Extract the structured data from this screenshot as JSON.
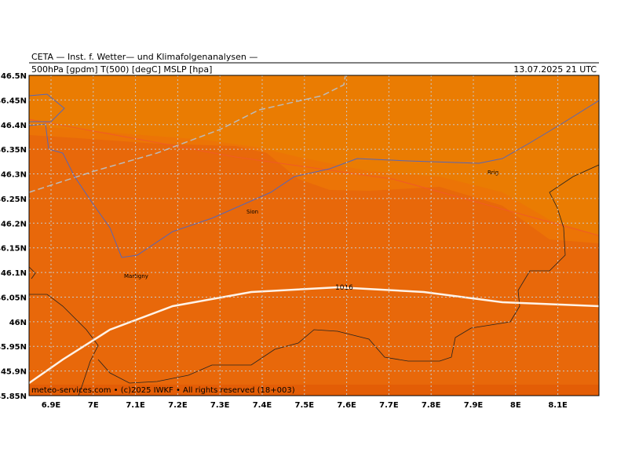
{
  "header": {
    "line1": "CETA — Inst. f. Wetter— und Klimafolgenanalysen —",
    "line2": "500hPa [gpdm] T(500) [degC] MSLP [hpa]",
    "datetime": "13.07.2025 21 UTC"
  },
  "axes": {
    "latitude": [
      "46.5N",
      "46.45N",
      "46.4N",
      "46.35N",
      "46.3N",
      "46.25N",
      "46.2N",
      "46.15N",
      "46.1N",
      "46.05N",
      "46N",
      "45.95N",
      "45.9N",
      "45.85N"
    ],
    "longitude": [
      "6.9E",
      "7E",
      "7.1E",
      "7.2E",
      "7.3E",
      "7.4E",
      "7.5E",
      "7.6E",
      "7.7E",
      "7.8E",
      "7.9E",
      "8E",
      "8.1E"
    ]
  },
  "places": [
    {
      "label": "Sion"
    },
    {
      "label": "Brig"
    },
    {
      "label": "Martigny"
    }
  ],
  "isobar": {
    "label": "1016"
  },
  "footer": "meteo-services.com • (c)2025 IWKF • All rights reserved (18+003)"
}
